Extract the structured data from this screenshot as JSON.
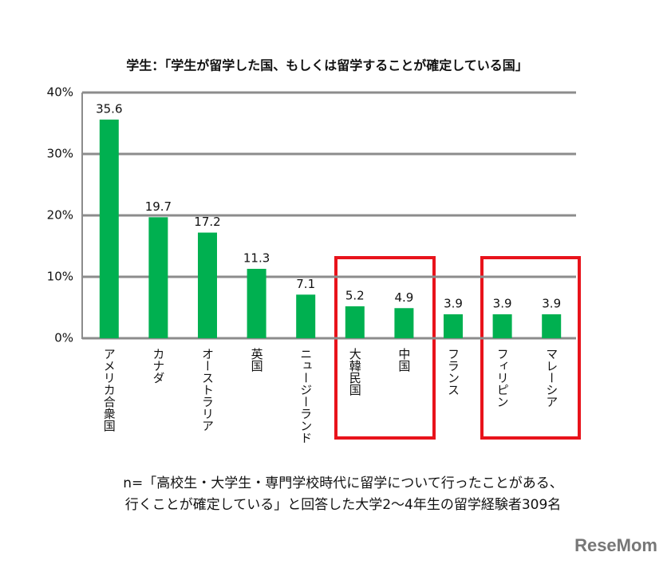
{
  "chart_data": {
    "type": "bar",
    "title": "学生：「学生が留学した国、もしくは留学することが確定している国」",
    "categories": [
      "アメリカ合衆国",
      "カナダ",
      "オーストラリア",
      "英国",
      "ニュージーランド",
      "大韓民国",
      "中国",
      "フランス",
      "フィリピン",
      "マレーシア"
    ],
    "values": [
      35.6,
      19.7,
      17.2,
      11.3,
      7.1,
      5.2,
      4.9,
      3.9,
      3.9,
      3.9
    ],
    "color": "#00b050",
    "ylim": [
      0,
      40
    ],
    "yticks": [
      {
        "value": 0,
        "label": "0%"
      },
      {
        "value": 10,
        "label": "10%"
      },
      {
        "value": 20,
        "label": "20%"
      },
      {
        "value": 30,
        "label": "30%"
      },
      {
        "value": 40,
        "label": "40%"
      }
    ],
    "grid": true,
    "notes": [
      "n=「高校生・大学生・専門学校時代に留学について行ったことがある、",
      "行くことが確定している」と回答した大学2～4年生の留学経験者309名"
    ]
  },
  "watermark": "ReseMom"
}
